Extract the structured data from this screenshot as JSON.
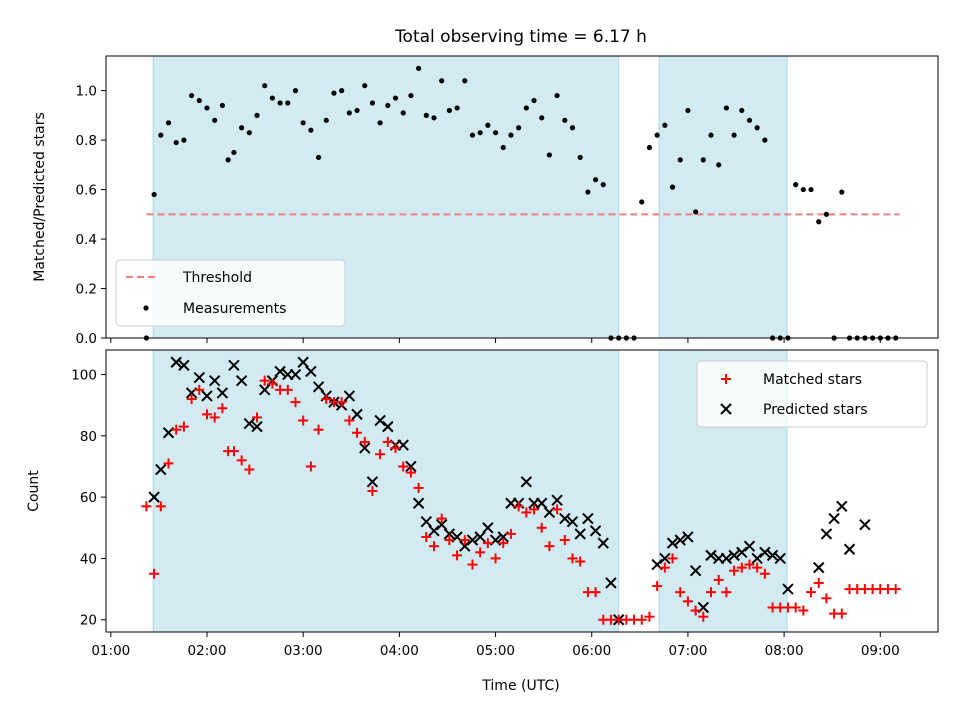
{
  "title": "Total observing time = 6.17 h",
  "xlabel": "Time (UTC)",
  "x_ticks": [
    "01:00",
    "02:00",
    "03:00",
    "04:00",
    "05:00",
    "06:00",
    "07:00",
    "08:00",
    "09:00"
  ],
  "colors": {
    "shade": "#add8e6",
    "threshold": "#f08080",
    "measurements": "#000000",
    "matched": "#ff0000",
    "predicted": "#000000"
  },
  "chart_data": [
    {
      "type": "scatter",
      "ylabel": "Matched/Predicted stars",
      "xlim": [
        0.95,
        9.6
      ],
      "ylim": [
        0.0,
        1.14
      ],
      "y_ticks": [
        "0.0",
        "0.2",
        "0.4",
        "0.6",
        "0.8",
        "1.0"
      ],
      "shaded_intervals": [
        [
          1.44,
          6.28
        ],
        [
          6.7,
          8.03
        ]
      ],
      "legend": {
        "placement": "lower-left",
        "entries": [
          "Threshold",
          "Measurements"
        ]
      },
      "threshold": {
        "name": "Threshold",
        "y": 0.5,
        "x_range": [
          1.37,
          9.2
        ]
      },
      "measurements": {
        "name": "Measurements",
        "x": [
          1.37,
          1.45,
          1.52,
          1.6,
          1.68,
          1.76,
          1.84,
          1.92,
          2.0,
          2.08,
          2.16,
          2.22,
          2.28,
          2.36,
          2.44,
          2.52,
          2.6,
          2.68,
          2.76,
          2.84,
          2.92,
          3.0,
          3.08,
          3.16,
          3.24,
          3.32,
          3.4,
          3.48,
          3.56,
          3.64,
          3.72,
          3.8,
          3.88,
          3.96,
          4.04,
          4.12,
          4.2,
          4.28,
          4.36,
          4.44,
          4.52,
          4.6,
          4.68,
          4.76,
          4.84,
          4.92,
          5.0,
          5.08,
          5.16,
          5.24,
          5.32,
          5.4,
          5.48,
          5.56,
          5.64,
          5.72,
          5.8,
          5.88,
          5.96,
          6.04,
          6.12,
          6.2,
          6.28,
          6.36,
          6.44,
          6.52,
          6.6,
          6.68,
          6.76,
          6.84,
          6.92,
          7.0,
          7.08,
          7.16,
          7.24,
          7.32,
          7.4,
          7.48,
          7.56,
          7.64,
          7.72,
          7.8,
          7.88,
          7.96,
          8.04,
          8.12,
          8.2,
          8.28,
          8.36,
          8.44,
          8.52,
          8.6,
          8.68,
          8.76,
          8.84,
          8.92,
          9.0,
          9.08,
          9.16
        ],
        "y": [
          0.0,
          0.58,
          0.82,
          0.87,
          0.79,
          0.8,
          0.98,
          0.96,
          0.93,
          0.88,
          0.94,
          0.72,
          0.75,
          0.85,
          0.83,
          0.9,
          1.02,
          0.97,
          0.95,
          0.95,
          1.0,
          0.87,
          0.84,
          0.73,
          0.88,
          0.99,
          1.0,
          0.91,
          0.92,
          1.02,
          0.95,
          0.87,
          0.94,
          0.97,
          0.91,
          0.98,
          1.09,
          0.9,
          0.89,
          1.04,
          0.92,
          0.93,
          1.04,
          0.82,
          0.83,
          0.86,
          0.83,
          0.77,
          0.82,
          0.85,
          0.93,
          0.96,
          0.89,
          0.74,
          0.98,
          0.88,
          0.85,
          0.73,
          0.59,
          0.64,
          0.62,
          0.0,
          0.0,
          0.0,
          0.0,
          0.55,
          0.77,
          0.82,
          0.86,
          0.61,
          0.72,
          0.92,
          0.51,
          0.72,
          0.82,
          0.7,
          0.93,
          0.82,
          0.92,
          0.88,
          0.85,
          0.8,
          0.0,
          0.0,
          0.0,
          0.62,
          0.6,
          0.6,
          0.47,
          0.5,
          0.0,
          0.59,
          0.0,
          0.0,
          0.0,
          0.0,
          0.0,
          0.0,
          0.0
        ]
      }
    },
    {
      "type": "scatter",
      "ylabel": "Count",
      "xlim": [
        0.95,
        9.6
      ],
      "ylim": [
        16,
        108
      ],
      "y_ticks": [
        "20",
        "40",
        "60",
        "80",
        "100"
      ],
      "shaded_intervals": [
        [
          1.44,
          6.28
        ],
        [
          6.7,
          8.03
        ]
      ],
      "legend": {
        "placement": "top-right",
        "entries": [
          "Matched stars",
          "Predicted stars"
        ]
      },
      "series": [
        {
          "name": "Matched stars",
          "marker": "plus",
          "x": [
            1.37,
            1.45,
            1.52,
            1.6,
            1.68,
            1.76,
            1.84,
            1.92,
            2.0,
            2.08,
            2.16,
            2.22,
            2.28,
            2.36,
            2.44,
            2.52,
            2.6,
            2.68,
            2.76,
            2.84,
            2.92,
            3.0,
            3.08,
            3.16,
            3.24,
            3.32,
            3.4,
            3.48,
            3.56,
            3.64,
            3.72,
            3.8,
            3.88,
            3.96,
            4.04,
            4.12,
            4.2,
            4.28,
            4.36,
            4.44,
            4.52,
            4.6,
            4.68,
            4.76,
            4.84,
            4.92,
            5.0,
            5.08,
            5.16,
            5.24,
            5.32,
            5.4,
            5.48,
            5.56,
            5.64,
            5.72,
            5.8,
            5.88,
            5.96,
            6.04,
            6.12,
            6.2,
            6.28,
            6.36,
            6.44,
            6.52,
            6.6,
            6.68,
            6.76,
            6.84,
            6.92,
            7.0,
            7.08,
            7.16,
            7.24,
            7.32,
            7.4,
            7.48,
            7.56,
            7.64,
            7.72,
            7.8,
            7.88,
            7.96,
            8.04,
            8.12,
            8.2,
            8.28,
            8.36,
            8.44,
            8.52,
            8.6,
            8.68,
            8.76,
            8.84,
            8.92,
            9.0,
            9.08,
            9.16
          ],
          "y": [
            57,
            35,
            57,
            71,
            82,
            83,
            92,
            95,
            87,
            86,
            89,
            75,
            75,
            72,
            69,
            86,
            98,
            97,
            95,
            95,
            91,
            85,
            70,
            82,
            92,
            91,
            91,
            85,
            81,
            78,
            62,
            74,
            78,
            76,
            70,
            68,
            63,
            47,
            44,
            53,
            46,
            41,
            46,
            38,
            42,
            45,
            40,
            45,
            48,
            57,
            55,
            56,
            50,
            44,
            56,
            46,
            40,
            39,
            29,
            29,
            20,
            20,
            20,
            20,
            20,
            20,
            21,
            31,
            37,
            40,
            29,
            26,
            23,
            21,
            29,
            33,
            29,
            36,
            37,
            38,
            37,
            35,
            24,
            24,
            24,
            24,
            23,
            29,
            32,
            27,
            22,
            22,
            30,
            30,
            30,
            30,
            30,
            30,
            30
          ]
        },
        {
          "name": "Predicted stars",
          "marker": "x",
          "x": [
            1.45,
            1.52,
            1.6,
            1.68,
            1.76,
            1.84,
            1.92,
            2.0,
            2.08,
            2.16,
            2.28,
            2.36,
            2.44,
            2.52,
            2.6,
            2.68,
            2.76,
            2.84,
            2.92,
            3.0,
            3.08,
            3.16,
            3.24,
            3.32,
            3.4,
            3.48,
            3.56,
            3.64,
            3.72,
            3.8,
            3.88,
            3.96,
            4.04,
            4.12,
            4.2,
            4.28,
            4.36,
            4.44,
            4.52,
            4.6,
            4.68,
            4.76,
            4.84,
            4.92,
            5.0,
            5.08,
            5.16,
            5.24,
            5.32,
            5.4,
            5.48,
            5.56,
            5.64,
            5.72,
            5.8,
            5.88,
            5.96,
            6.04,
            6.12,
            6.2,
            6.28,
            6.68,
            6.76,
            6.84,
            6.92,
            7.0,
            7.08,
            7.16,
            7.24,
            7.32,
            7.4,
            7.48,
            7.56,
            7.64,
            7.72,
            7.8,
            7.88,
            7.96,
            8.04,
            8.36,
            8.44,
            8.52,
            8.6,
            8.68,
            8.84
          ],
          "y": [
            60,
            69,
            81,
            104,
            103,
            94,
            99,
            93,
            98,
            94,
            103,
            98,
            84,
            83,
            95,
            98,
            101,
            100,
            100,
            104,
            101,
            96,
            93,
            91,
            90,
            93,
            87,
            76,
            65,
            85,
            83,
            77,
            77,
            70,
            58,
            52,
            49,
            51,
            48,
            47,
            44,
            46,
            47,
            50,
            46,
            47,
            58,
            58,
            65,
            58,
            58,
            55,
            59,
            53,
            52,
            48,
            53,
            49,
            45,
            32,
            20,
            38,
            40,
            45,
            46,
            47,
            36,
            24,
            41,
            40,
            40,
            41,
            42,
            44,
            40,
            42,
            41,
            40,
            30,
            37,
            48,
            53,
            57,
            43,
            51
          ]
        }
      ]
    }
  ]
}
